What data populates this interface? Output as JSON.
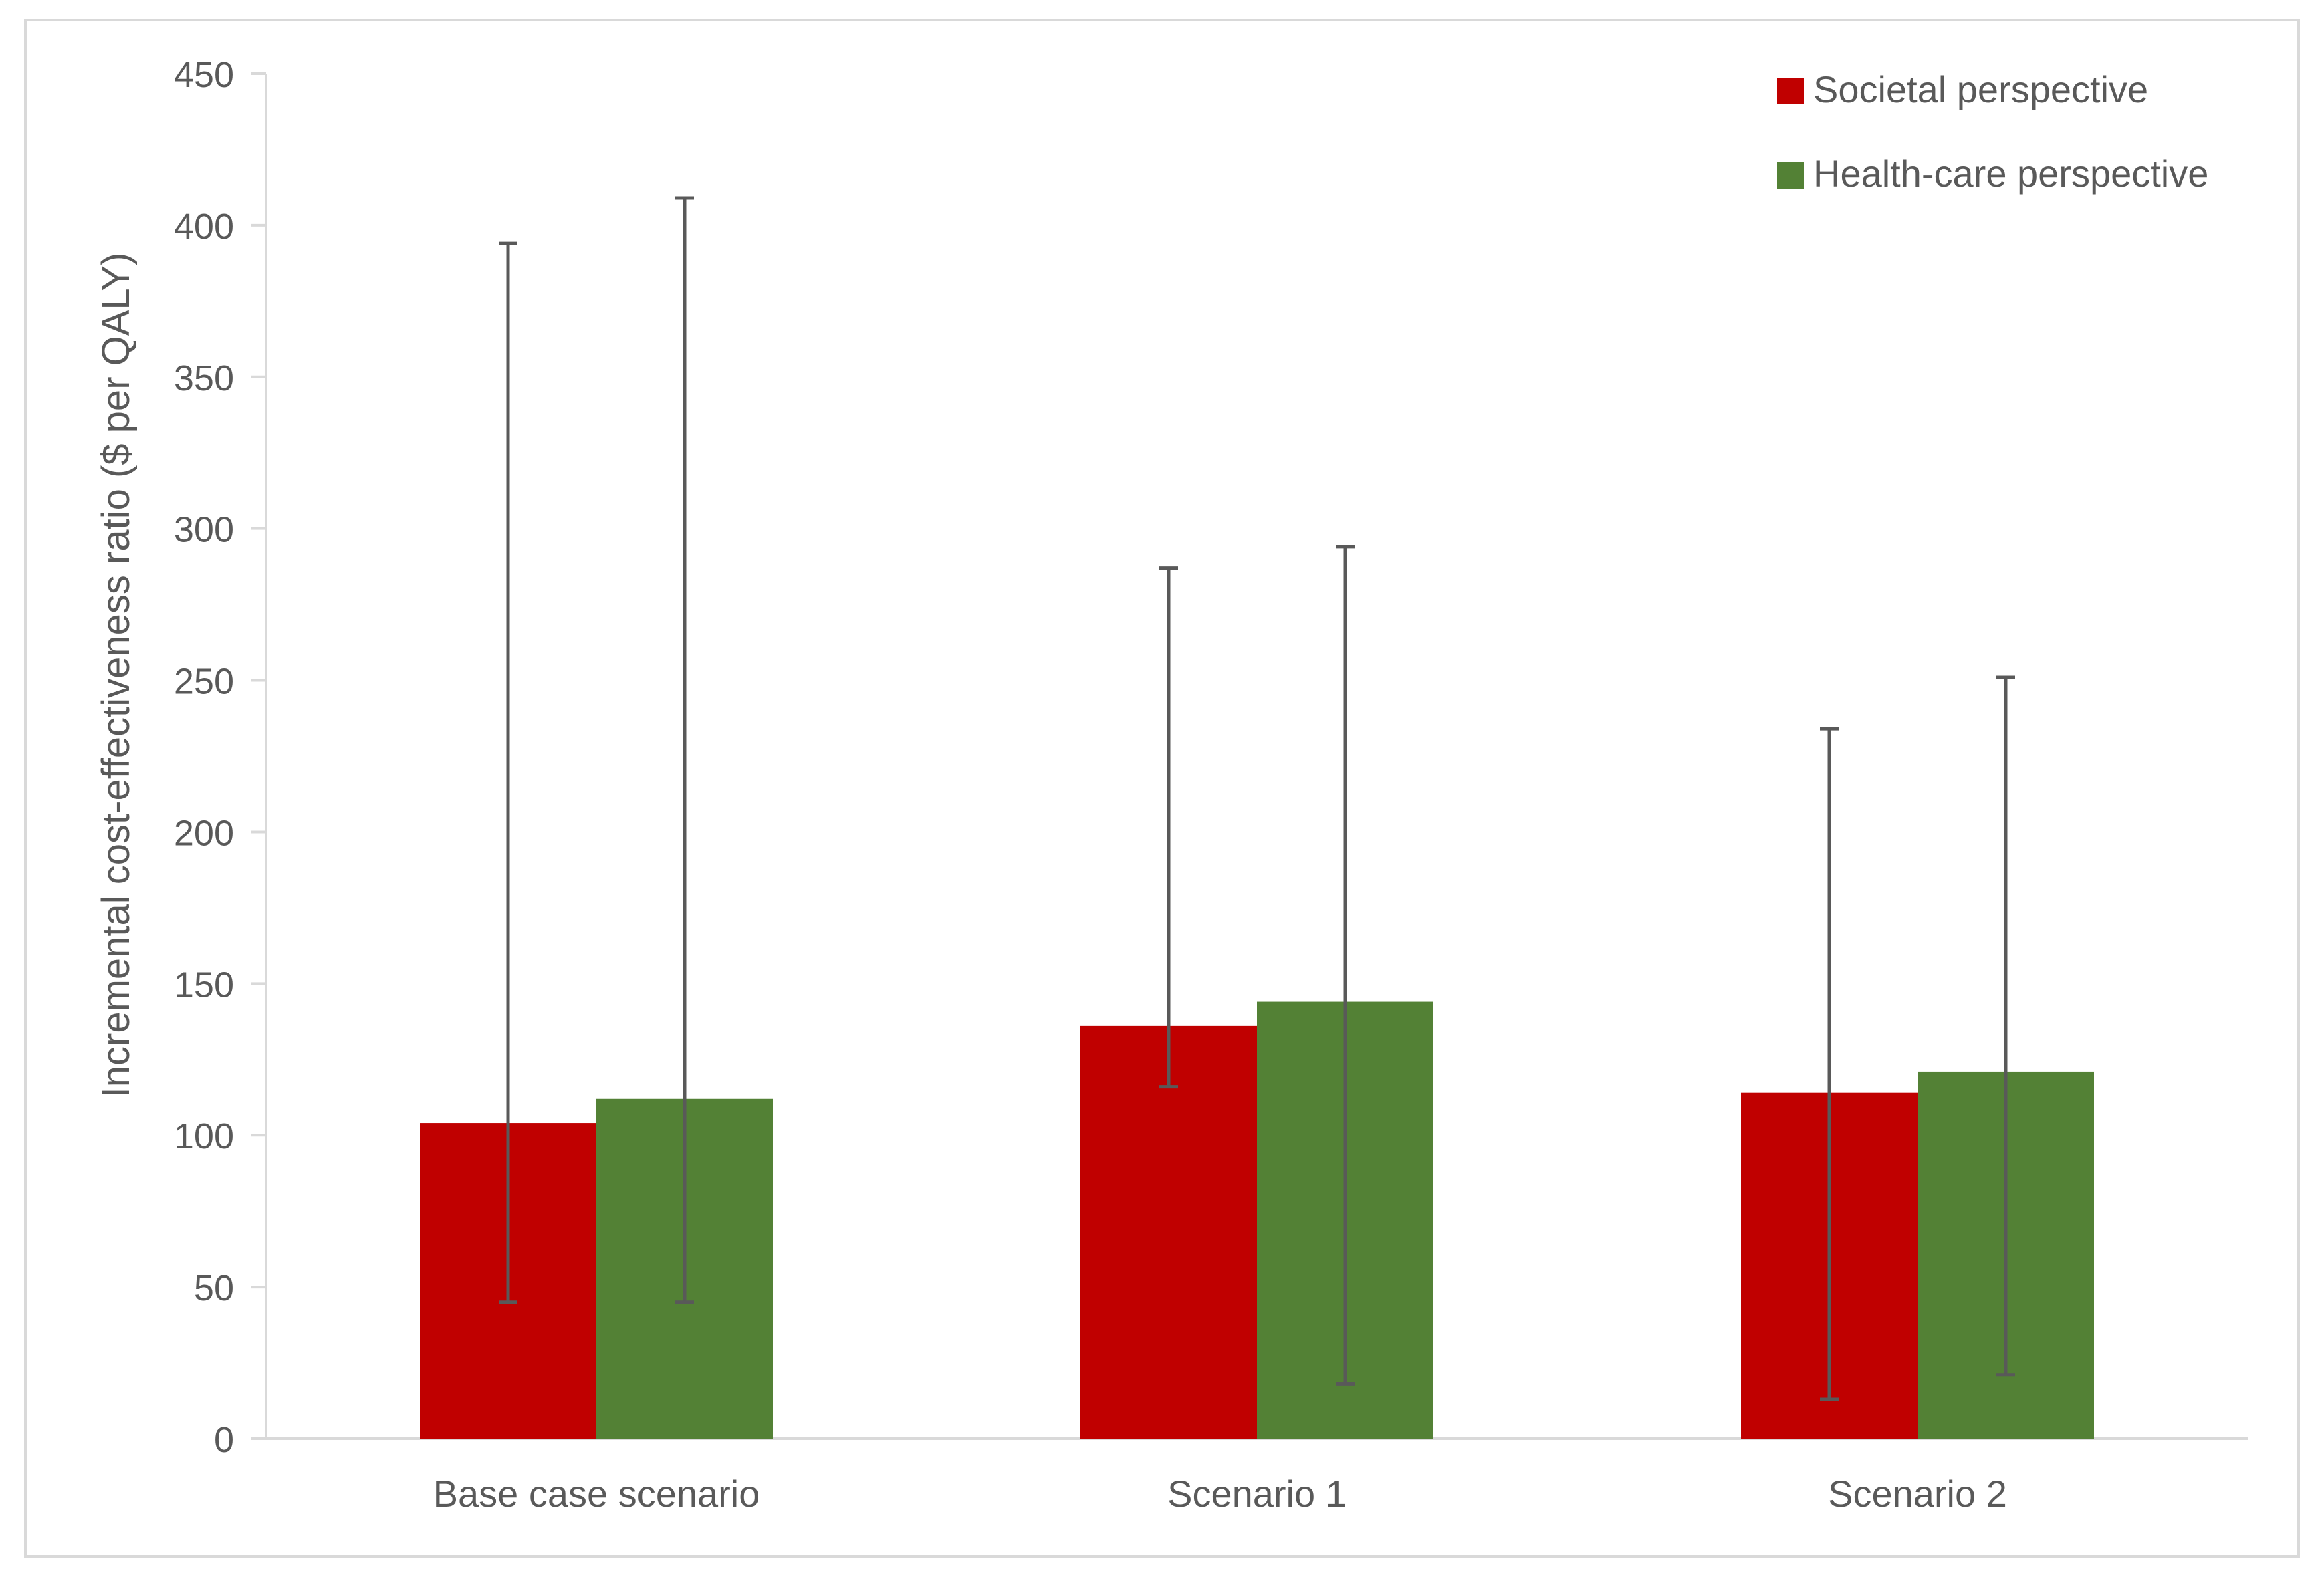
{
  "chart_data": {
    "type": "bar",
    "categories": [
      "Base case scenario",
      "Scenario 1",
      "Scenario 2"
    ],
    "series": [
      {
        "name": "Societal perspective",
        "color": "#c00000",
        "values": [
          104,
          136,
          114
        ],
        "error_low": [
          45,
          116,
          13
        ],
        "error_high": [
          394,
          287,
          234
        ]
      },
      {
        "name": "Health-care perspective",
        "color": "#538135",
        "values": [
          112,
          144,
          121
        ],
        "error_low": [
          45,
          18,
          21
        ],
        "error_high": [
          409,
          294,
          251
        ]
      }
    ],
    "title": "",
    "xlabel": "",
    "ylabel": "Incremental cost-effectiveness ratio ($ per QALY)",
    "ylim": [
      0,
      450
    ],
    "yticks": [
      "0",
      "50",
      "100",
      "150",
      "200",
      "250",
      "300",
      "350",
      "400",
      "450"
    ],
    "grid": false,
    "legend_position": "top-right"
  }
}
